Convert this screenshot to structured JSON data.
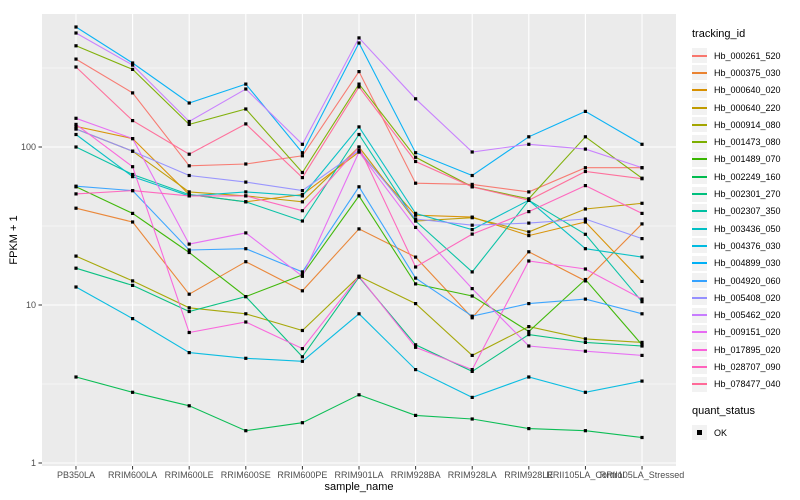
{
  "chart_data": {
    "type": "line",
    "title": "",
    "xlabel": "sample_name",
    "ylabel": "FPKM + 1",
    "y_scale": "log10",
    "y_ticks": [
      "1",
      "10",
      "100"
    ],
    "y_tick_values": [
      1,
      10,
      100
    ],
    "y_minor_values": [
      3.1623,
      31.623,
      316.23
    ],
    "ylim": [
      1,
      700
    ],
    "grid": true,
    "legend_position": "right",
    "point_shape": "square",
    "point_color": "#000000",
    "categories": [
      "PB350LA",
      "RRIM600LA",
      "RRIM600LE",
      "RRIM600SE",
      "RRIM600PE",
      "RRIM901LA",
      "RRIM928BA",
      "RRIM928LA",
      "RRIM928LE",
      "RRII105LA_Control",
      "RRII105LA_Stressed"
    ],
    "legend": {
      "color_title": "tracking_id",
      "shape_title": "quant_status",
      "shape_items": [
        {
          "label": "OK"
        }
      ]
    },
    "series": [
      {
        "name": "Hb_000261_520",
        "color": "#F8766D",
        "values": [
          360,
          220,
          76,
          78,
          88,
          300,
          59,
          58,
          52,
          74,
          74
        ]
      },
      {
        "name": "Hb_000375_030",
        "color": "#EA8331",
        "values": [
          41,
          33.5,
          11.7,
          18.8,
          12.3,
          30.3,
          20.1,
          8.3,
          21.7,
          14.2,
          32.6
        ]
      },
      {
        "name": "Hb_000640_020",
        "color": "#D89000",
        "values": [
          135,
          113,
          50,
          45,
          50,
          93,
          37,
          36,
          27.5,
          33.5,
          14.1
        ]
      },
      {
        "name": "Hb_000640_220",
        "color": "#C09B00",
        "values": [
          130,
          94,
          52,
          49,
          45,
          100,
          34,
          35.7,
          29,
          40.5,
          44
        ]
      },
      {
        "name": "Hb_000914_080",
        "color": "#A3A500",
        "values": [
          20.4,
          14.2,
          9.6,
          8.8,
          6.9,
          15.2,
          10.2,
          4.8,
          7.3,
          6.1,
          5.8
        ]
      },
      {
        "name": "Hb_001473_080",
        "color": "#7CAE00",
        "values": [
          437,
          310,
          139,
          174,
          69,
          250,
          86,
          56,
          47,
          116,
          63.5
        ]
      },
      {
        "name": "Hb_001489_070",
        "color": "#39B600",
        "values": [
          56,
          38,
          21.5,
          11.3,
          15.5,
          49,
          13.6,
          11.4,
          6.8,
          14.5,
          5.6
        ]
      },
      {
        "name": "Hb_002249_160",
        "color": "#00BB4E",
        "values": [
          3.5,
          2.8,
          2.3,
          1.6,
          1.8,
          2.7,
          2.0,
          1.9,
          1.65,
          1.6,
          1.45
        ]
      },
      {
        "name": "Hb_002301_270",
        "color": "#00BF7D",
        "values": [
          17.1,
          13.3,
          9.1,
          11.3,
          4.7,
          15,
          5.6,
          3.8,
          6.5,
          5.8,
          5.5
        ]
      },
      {
        "name": "Hb_002307_350",
        "color": "#00C1A3",
        "values": [
          100,
          67,
          50,
          45,
          34,
          120,
          34,
          16.2,
          46,
          28,
          10.5
        ]
      },
      {
        "name": "Hb_003436_050",
        "color": "#00BFC4",
        "values": [
          120,
          65,
          49,
          52,
          49,
          134,
          38,
          30,
          46,
          22.7,
          20.1
        ]
      },
      {
        "name": "Hb_004376_030",
        "color": "#00BAE0",
        "values": [
          13,
          8.2,
          5.0,
          4.6,
          4.4,
          8.8,
          3.9,
          2.6,
          3.5,
          2.8,
          3.3
        ]
      },
      {
        "name": "Hb_004899_030",
        "color": "#00B0F6",
        "values": [
          575,
          340,
          190,
          250,
          92,
          455,
          92,
          66,
          116,
          168,
          104
        ]
      },
      {
        "name": "Hb_004920_060",
        "color": "#35A2FF",
        "values": [
          56.5,
          53,
          22.3,
          22.7,
          16.2,
          56,
          14.8,
          8.5,
          10.2,
          10.9,
          8.8
        ]
      },
      {
        "name": "Hb_005408_020",
        "color": "#9590FF",
        "values": [
          130,
          94,
          66,
          60,
          53,
          95,
          35,
          32,
          33,
          35,
          26.3
        ]
      },
      {
        "name": "Hb_005462_020",
        "color": "#C77CFF",
        "values": [
          527,
          330,
          145,
          233,
          104,
          490,
          202,
          93,
          104,
          97,
          74
        ]
      },
      {
        "name": "Hb_009151_020",
        "color": "#E76BF3",
        "values": [
          152,
          113,
          24.3,
          28.6,
          15.2,
          93,
          31,
          12.7,
          5.5,
          5.1,
          4.8
        ]
      },
      {
        "name": "Hb_017895_020",
        "color": "#FA62DB",
        "values": [
          139,
          75,
          6.7,
          7.8,
          5.3,
          15.2,
          5.4,
          3.9,
          19,
          16.9,
          10.9
        ]
      },
      {
        "name": "Hb_028707_090",
        "color": "#FF62BC",
        "values": [
          50.5,
          53,
          49,
          49,
          39.5,
          100,
          17.4,
          28.1,
          39,
          57,
          38
        ]
      },
      {
        "name": "Hb_078477_040",
        "color": "#FF6A98",
        "values": [
          321,
          147,
          90,
          140,
          64,
          240,
          81,
          56,
          46,
          70,
          63
        ]
      }
    ]
  },
  "theme": {
    "panel_bg": "#EBEBEB",
    "grid_color": "#FFFFFF",
    "legend_key_bg": "#F2F2F2",
    "axis_text_color": "#4D4D4D",
    "tick_color": "#333333"
  }
}
